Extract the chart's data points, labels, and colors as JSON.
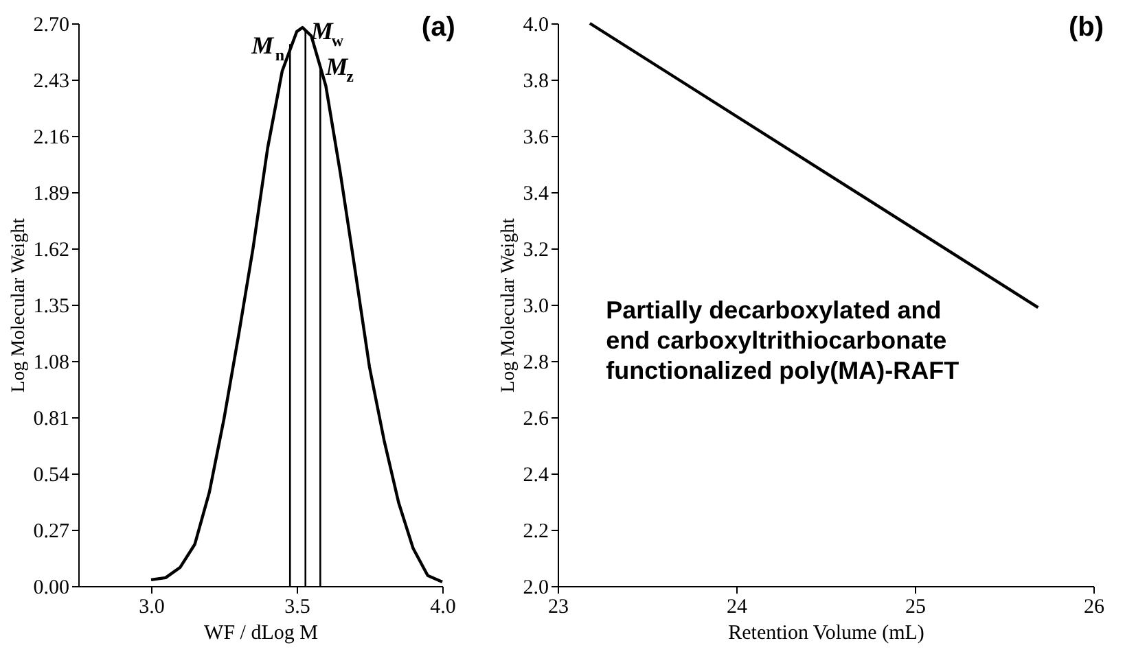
{
  "chart_data": [
    {
      "type": "line",
      "title": "(a)",
      "xlabel": "WF / dLog M",
      "ylabel": "Log Molecular Weight",
      "xlim": [
        2.75,
        4.0
      ],
      "xticks": [
        {
          "value": 3,
          "label": "3.0"
        },
        {
          "value": 3.5,
          "label": "3.5"
        },
        {
          "value": 4,
          "label": "4.0"
        }
      ],
      "ylim": [
        0,
        2.7
      ],
      "yticks": [
        {
          "value": 0,
          "label": "0.00"
        },
        {
          "value": 0.27,
          "label": "0.27"
        },
        {
          "value": 0.54,
          "label": "0.54"
        },
        {
          "value": 0.81,
          "label": "0.81"
        },
        {
          "value": 1.08,
          "label": "1.08"
        },
        {
          "value": 1.35,
          "label": "1.35"
        },
        {
          "value": 1.62,
          "label": "1.62"
        },
        {
          "value": 1.89,
          "label": "1.89"
        },
        {
          "value": 2.16,
          "label": "2.16"
        },
        {
          "value": 2.43,
          "label": "2.43"
        },
        {
          "value": 2.7,
          "label": "2.70"
        }
      ],
      "grid": false,
      "series": [
        {
          "color": "#000000",
          "x": [
            3.0,
            3.05,
            3.1,
            3.15,
            3.2,
            3.25,
            3.3,
            3.35,
            3.4,
            3.45,
            3.5,
            3.52,
            3.55,
            3.6,
            3.65,
            3.7,
            3.75,
            3.8,
            3.85,
            3.9,
            3.95,
            4.0
          ],
          "values": [
            0.03,
            0.04,
            0.09,
            0.2,
            0.45,
            0.8,
            1.2,
            1.62,
            2.1,
            2.47,
            2.66,
            2.68,
            2.64,
            2.4,
            1.98,
            1.52,
            1.05,
            0.7,
            0.4,
            0.18,
            0.05,
            0.02
          ]
        },
        {
          "color": "#000000",
          "x": [
            3.477,
            3.477
          ],
          "values": [
            0,
            2.6
          ]
        },
        {
          "color": "#000000",
          "x": [
            3.53,
            3.53
          ],
          "values": [
            0,
            2.67
          ]
        },
        {
          "color": "#000000",
          "x": [
            3.581,
            3.581
          ],
          "values": [
            0,
            2.5
          ]
        }
      ],
      "annotations": [
        {
          "text": "M$_{n}$",
          "x": 3.477,
          "y": 2.6
        },
        {
          "text": "M$_{w}$",
          "x": 3.53,
          "y": 2.67
        },
        {
          "text": "M$_{z}$",
          "x": 3.581,
          "y": 2.5
        }
      ]
    },
    {
      "type": "line",
      "title": "(b)",
      "xlabel": "Retention Volume (mL)",
      "ylabel": "Log Molecular Weight",
      "xlim": [
        23,
        26
      ],
      "xticks": [
        23,
        24,
        25,
        26
      ],
      "ylim": [
        2.0,
        4.0
      ],
      "yticks": [
        {
          "value": 2,
          "label": "2.0"
        },
        2.2,
        2.4,
        2.6,
        2.8,
        {
          "value": 3,
          "label": "3.0"
        },
        3.2,
        3.4,
        3.6,
        3.8,
        {
          "value": 4,
          "label": "4.0"
        }
      ],
      "grid": false,
      "series": [
        {
          "color": "#000000",
          "x": [
            23.18,
            25.69
          ],
          "values": [
            4.0,
            2.99
          ]
        }
      ],
      "annotations": [
        "Partially decarboxylated and\nend carboxyltrithiocarbonate\nfunctionalized poly(MA)-RAFT"
      ]
    }
  ]
}
